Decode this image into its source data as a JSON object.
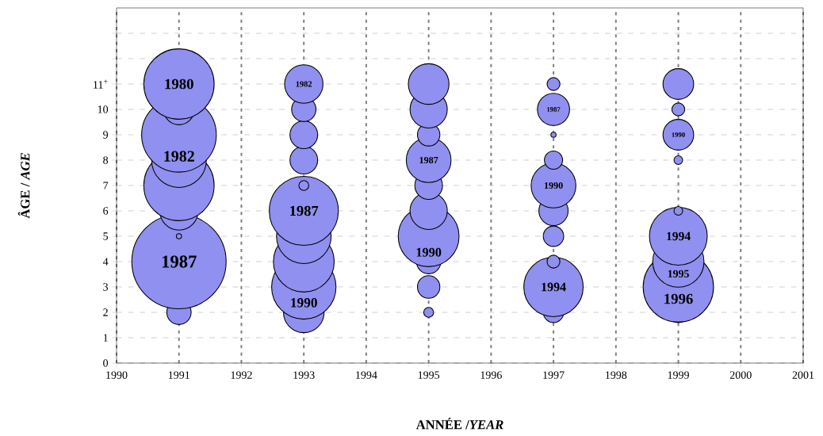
{
  "chart_data": {
    "type": "bubble",
    "xlabel": "ANNÉE /*YEAR*",
    "ylabel": "ÂGE / *AGE*",
    "color": "#9090f0",
    "grid": true,
    "xlim": [
      1990,
      2001
    ],
    "xticks": [
      1990,
      1991,
      1992,
      1993,
      1994,
      1995,
      1996,
      1997,
      1998,
      1999,
      2000,
      2001
    ],
    "ylim": [
      0,
      14
    ],
    "yticks": [
      0,
      1,
      2,
      3,
      4,
      5,
      6,
      7,
      8,
      9,
      10,
      {
        "value": 11,
        "label": "11$^{+}$"
      },
      {
        "value": 12,
        "label": null
      },
      {
        "value": 13,
        "label": null
      }
    ],
    "x": [
      1991,
      1991,
      1991,
      1991,
      1991,
      1991,
      1991,
      1991,
      1991,
      1993,
      1993,
      1993,
      1993,
      1993,
      1993,
      1993,
      1993,
      1993,
      1993,
      1995,
      1995,
      1995,
      1995,
      1995,
      1995,
      1995,
      1995,
      1995,
      1995,
      1997,
      1997,
      1997,
      1997,
      1997,
      1997,
      1997,
      1997,
      1997,
      1997,
      1999,
      1999,
      1999,
      1999,
      1999,
      1999,
      1999,
      1999,
      1999
    ],
    "values": [
      2,
      4,
      5,
      6,
      7,
      8,
      9,
      10,
      11,
      2,
      3,
      4,
      5,
      6,
      7,
      8,
      9,
      10,
      11,
      2,
      3,
      4,
      5,
      6,
      7,
      8,
      9,
      10,
      11,
      2,
      3,
      4,
      5,
      6,
      7,
      8,
      9,
      10,
      11,
      2,
      3,
      4,
      5,
      6,
      8,
      9,
      10,
      11
    ],
    "sizes": [
      0.07,
      1,
      0.004,
      0.17,
      0.56,
      0.34,
      0.63,
      0.11,
      0.56,
      0.19,
      0.47,
      0.42,
      0.34,
      0.54,
      0.02,
      0.09,
      0.09,
      0.07,
      0.17,
      0.02,
      0.06,
      0.07,
      0.42,
      0.16,
      0.09,
      0.23,
      0.06,
      0.16,
      0.19,
      0.05,
      0.4,
      0.03,
      0.05,
      0.1,
      0.23,
      0.04,
      0.004,
      0.12,
      0.03,
      0.05,
      0.56,
      0.3,
      0.38,
      0.01,
      0.01,
      0.11,
      0.03,
      0.11
    ],
    "annotations": [
      {
        "text": "1987",
        "x": 1991,
        "y": 4
      },
      {
        "text": "1982",
        "x": 1991,
        "y": 9
      },
      {
        "text": "1980",
        "x": 1991,
        "y": 11
      },
      {
        "text": "1990",
        "x": 1993,
        "y": 3
      },
      {
        "text": "1987",
        "x": 1993,
        "y": 6
      },
      {
        "text": "1982",
        "x": 1993,
        "y": 11
      },
      {
        "text": "1990",
        "x": 1995,
        "y": 5
      },
      {
        "text": "1987",
        "x": 1995,
        "y": 8
      },
      {
        "text": "1994",
        "x": 1997,
        "y": 3
      },
      {
        "text": "1990",
        "x": 1997,
        "y": 7
      },
      {
        "text": "1987",
        "x": 1997,
        "y": 10
      },
      {
        "text": "1996",
        "x": 1999,
        "y": 3
      },
      {
        "text": "1995",
        "x": 1999,
        "y": 4
      },
      {
        "text": "1994",
        "x": 1999,
        "y": 5
      },
      {
        "text": "1990",
        "x": 1999,
        "y": 9
      }
    ]
  }
}
